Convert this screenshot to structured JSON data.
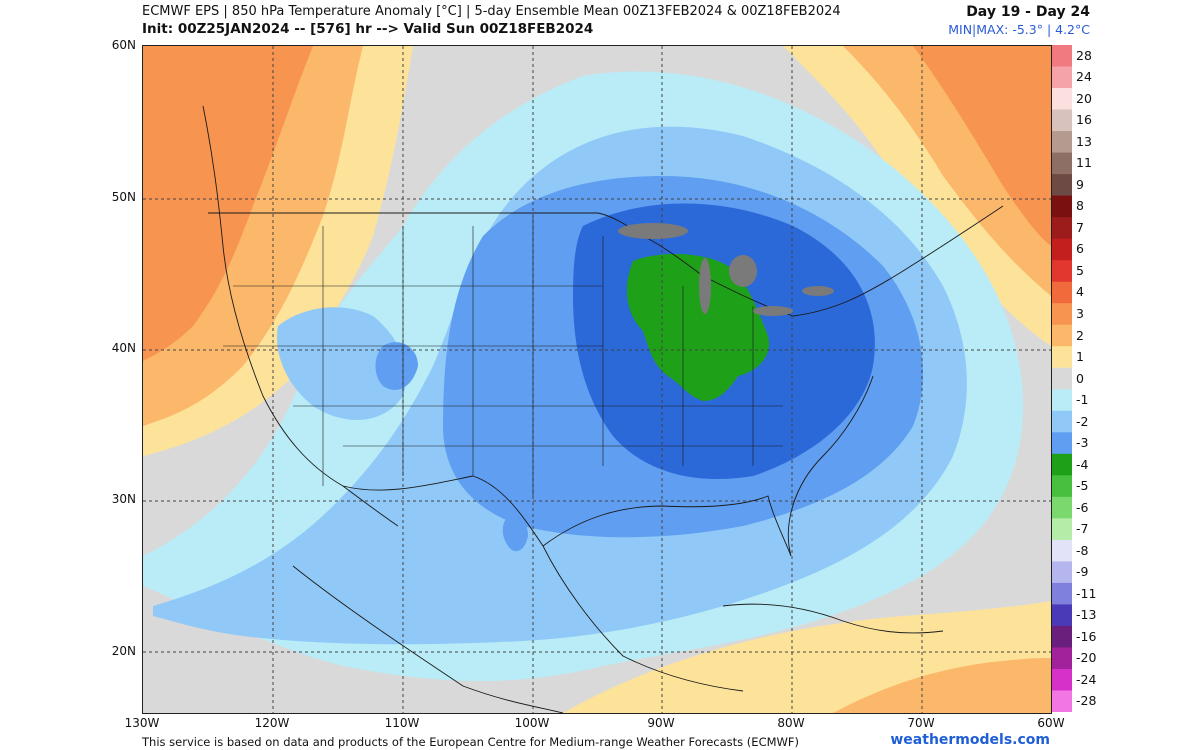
{
  "header": {
    "title": "ECMWF EPS | 850 hPa Temperature Anomaly [°C] | 5-day Ensemble Mean 00Z13FEB2024 & 00Z18FEB2024",
    "init": "Init: 00Z25JAN2024 -- [576] hr --> Valid Sun 00Z18FEB2024",
    "day_range": "Day 19 - Day 24",
    "minmax": "MIN|MAX: -5.3° | 4.2°C"
  },
  "map": {
    "lat_labels": [
      "60N",
      "50N",
      "40N",
      "30N",
      "20N"
    ],
    "lon_labels": [
      "130W",
      "120W",
      "110W",
      "100W",
      "90W",
      "80W",
      "70W",
      "60W"
    ]
  },
  "colorbar": {
    "levels": [
      {
        "label": "28",
        "color": "#f07a80"
      },
      {
        "label": "24",
        "color": "#f5a3a8"
      },
      {
        "label": "20",
        "color": "#fbe0e0"
      },
      {
        "label": "16",
        "color": "#d7c2bd"
      },
      {
        "label": "13",
        "color": "#b59a90"
      },
      {
        "label": "11",
        "color": "#8e6f66"
      },
      {
        "label": "9",
        "color": "#6d4a43"
      },
      {
        "label": "8",
        "color": "#7a1010"
      },
      {
        "label": "7",
        "color": "#9c1b1b"
      },
      {
        "label": "6",
        "color": "#c41f1f"
      },
      {
        "label": "5",
        "color": "#e2372e"
      },
      {
        "label": "4",
        "color": "#f06a3b"
      },
      {
        "label": "3",
        "color": "#f7944f"
      },
      {
        "label": "2",
        "color": "#fbb86b"
      },
      {
        "label": "1",
        "color": "#fde39a"
      },
      {
        "label": "0",
        "color": "#d9d9d9"
      },
      {
        "label": "-1",
        "color": "#b9ecf7"
      },
      {
        "label": "-2",
        "color": "#90c9f7"
      },
      {
        "label": "-3",
        "color": "#5f9ef0"
      },
      {
        "label": "-4",
        "color": "#1ea018"
      },
      {
        "label": "-5",
        "color": "#47c040"
      },
      {
        "label": "-6",
        "color": "#7ad86f"
      },
      {
        "label": "-7",
        "color": "#b4eda8"
      },
      {
        "label": "-8",
        "color": "#e2e2f8"
      },
      {
        "label": "-9",
        "color": "#b6b6ee"
      },
      {
        "label": "-11",
        "color": "#7f7fdd"
      },
      {
        "label": "-13",
        "color": "#4a3ab8"
      },
      {
        "label": "-16",
        "color": "#6a1f7c"
      },
      {
        "label": "-20",
        "color": "#a2229c"
      },
      {
        "label": "-24",
        "color": "#d631c8"
      },
      {
        "label": "-28",
        "color": "#f276e4"
      }
    ]
  },
  "footer": {
    "note": "This service is based on data and products of the European Centre for Medium-range Weather Forecasts (ECMWF)",
    "brand": "weathermodels.com"
  }
}
